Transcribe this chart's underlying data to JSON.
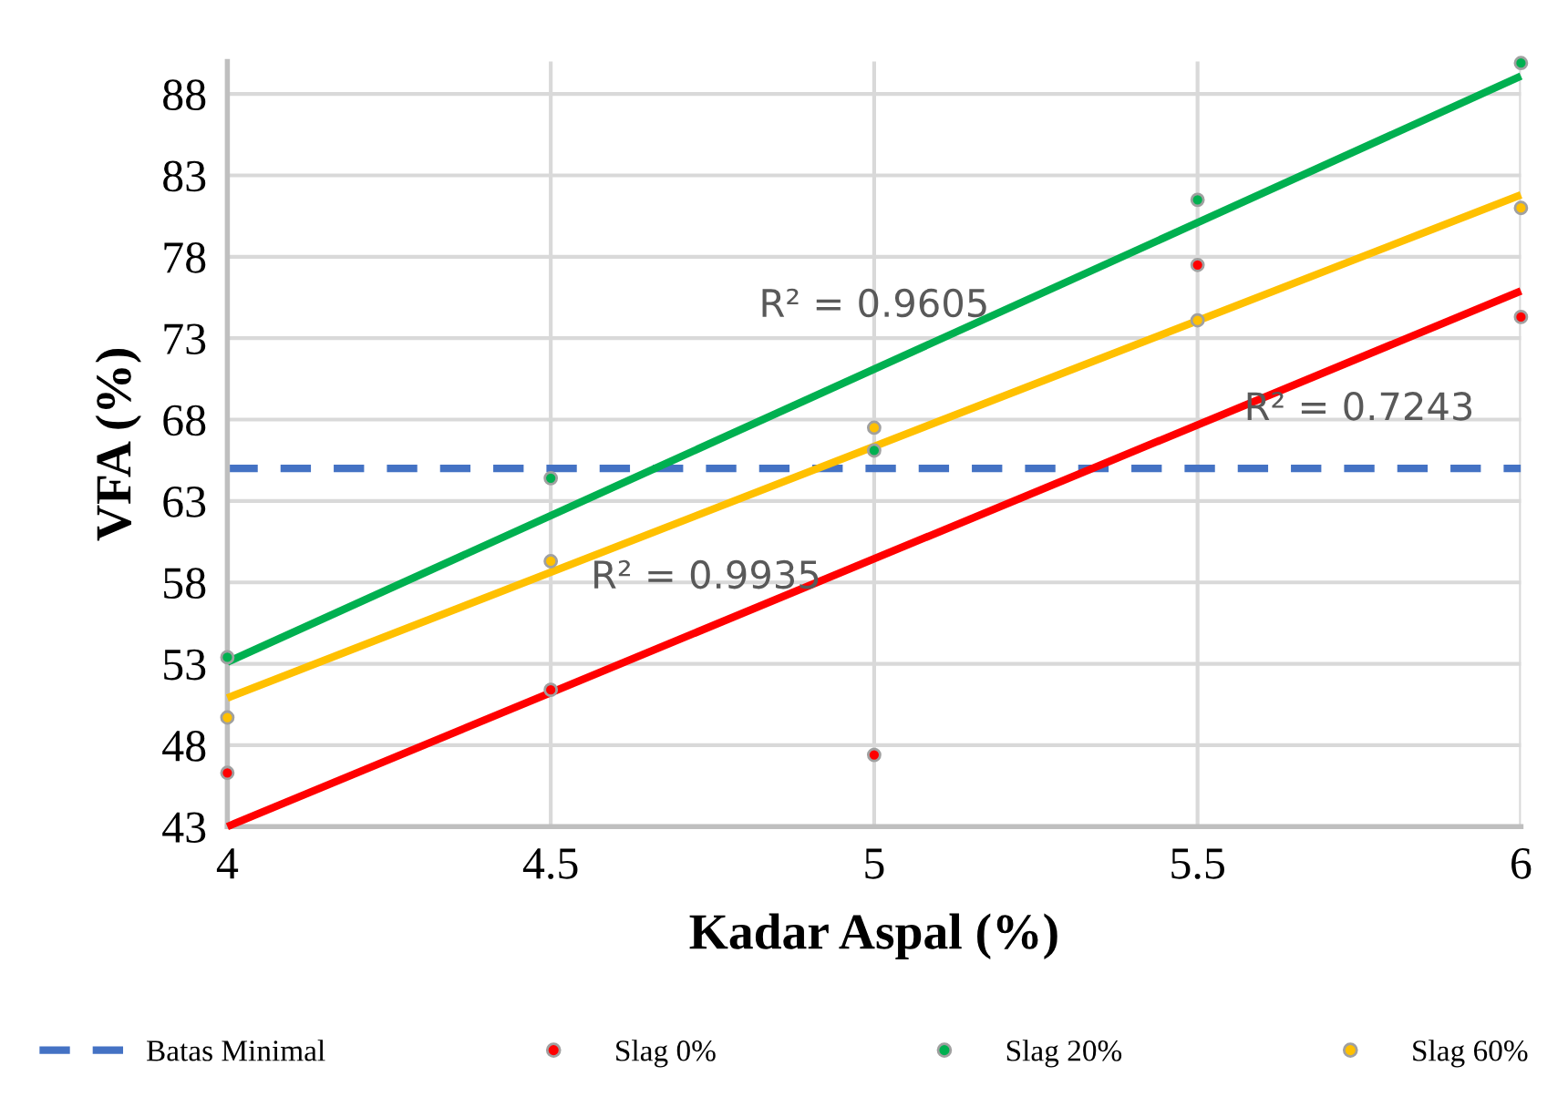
{
  "chart_data": {
    "type": "scatter",
    "xlabel": "Kadar Aspal (%)",
    "ylabel": "VFA (%)",
    "xlim": [
      4,
      6
    ],
    "xticks": [
      4,
      4.5,
      5,
      5.5,
      6
    ],
    "ylim": [
      43,
      90
    ],
    "yticks": [
      43,
      48,
      53,
      58,
      63,
      68,
      73,
      78,
      83,
      88
    ],
    "grid": true,
    "legend": "bottom",
    "marker": "circle",
    "series": [
      {
        "name": "Slag 0%",
        "color": "#ff0000",
        "x": [
          4,
          4.5,
          5,
          5.5,
          6
        ],
        "values": [
          46.3,
          51.4,
          47.4,
          77.5,
          74.3
        ]
      },
      {
        "name": "Slag 20%",
        "color": "#00b050",
        "x": [
          4,
          4.5,
          5,
          5.5,
          6
        ],
        "values": [
          53.4,
          64.4,
          66.1,
          81.5,
          89.9
        ]
      },
      {
        "name": "Slag 60%",
        "color": "#ffc000",
        "x": [
          4,
          4.5,
          5,
          5.5,
          6
        ],
        "values": [
          49.7,
          59.3,
          67.5,
          74.1,
          81.0
        ]
      },
      {
        "type": "line",
        "marker": "none",
        "color": "#ff0000",
        "x": [
          4,
          6
        ],
        "values": [
          43.0,
          75.9
        ]
      },
      {
        "type": "line",
        "marker": "none",
        "color": "#00b050",
        "x": [
          4,
          6
        ],
        "values": [
          53.1,
          89.1
        ]
      },
      {
        "type": "line",
        "marker": "none",
        "color": "#ffc000",
        "x": [
          4,
          6
        ],
        "values": [
          50.9,
          81.8
        ]
      }
    ],
    "ref_lines": [
      {
        "axis": "y",
        "value": 65,
        "label": "Batas Minimal",
        "color": "#4472c4",
        "line_style": "dashed"
      }
    ],
    "annotations": [
      "R² = 0.9605",
      "R² = 0.7243",
      "R² = 0.9935"
    ]
  }
}
